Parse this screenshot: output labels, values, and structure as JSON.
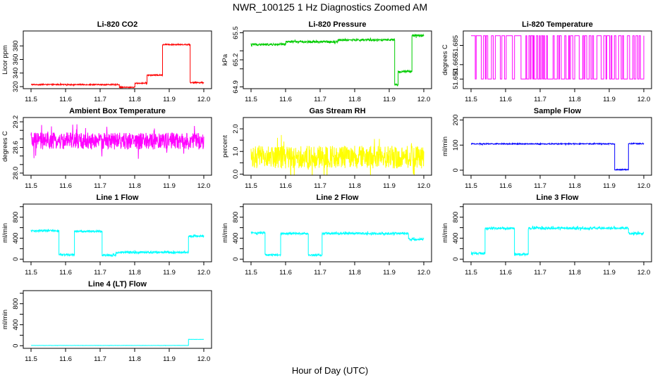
{
  "figure": {
    "title": "NWR_100125  1 Hz Diagnostics Zoomed AM",
    "xlabel": "Hour of Day (UTC)"
  },
  "chart_data": [
    {
      "type": "line",
      "title": "Li-820 CO2",
      "ylabel": "Licor ppm",
      "color": "#ff0000",
      "xlim": [
        11.5,
        12.0
      ],
      "ylim": [
        317,
        402
      ],
      "xticks": [
        "11.5",
        "11.6",
        "11.7",
        "11.8",
        "11.9",
        "12.0"
      ],
      "yticks": [
        "320",
        "340",
        "360",
        "380"
      ],
      "segments": [
        {
          "x0": 11.5,
          "x1": 11.755,
          "y": 323
        },
        {
          "x0": 11.755,
          "x1": 11.8,
          "y": 319
        },
        {
          "x0": 11.8,
          "x1": 11.835,
          "y": 325
        },
        {
          "x0": 11.835,
          "x1": 11.88,
          "y": 337
        },
        {
          "x0": 11.88,
          "x1": 11.96,
          "y": 382
        },
        {
          "x0": 11.96,
          "x1": 12.0,
          "y": 326
        }
      ],
      "noise": 0.8
    },
    {
      "type": "line",
      "title": "Li-820 Pressure",
      "ylabel": "kPa",
      "color": "#00cc00",
      "xlim": [
        11.5,
        12.0
      ],
      "ylim": [
        64.88,
        65.52
      ],
      "xticks": [
        "11.5",
        "11.6",
        "11.7",
        "11.8",
        "11.9",
        "12.0"
      ],
      "yticks": [
        "64.9",
        "65.2",
        "65.5"
      ],
      "yticks_minor": [
        "65.1",
        "65.3"
      ],
      "segments": [
        {
          "x0": 11.5,
          "x1": 11.6,
          "y": 65.37
        },
        {
          "x0": 11.6,
          "x1": 11.75,
          "y": 65.4
        },
        {
          "x0": 11.75,
          "x1": 11.915,
          "y": 65.42
        },
        {
          "x0": 11.915,
          "x1": 11.925,
          "y": 64.92
        },
        {
          "x0": 11.925,
          "x1": 11.965,
          "y": 65.07
        },
        {
          "x0": 11.965,
          "x1": 12.0,
          "y": 65.47
        }
      ],
      "noise": 0.012
    },
    {
      "type": "line",
      "title": "Li-820 Temperature",
      "ylabel": "degrees C",
      "color": "#ff00ff",
      "xlim": [
        11.5,
        12.0
      ],
      "ylim": [
        51.64,
        51.7
      ],
      "xticks": [
        "11.5",
        "11.6",
        "11.7",
        "11.8",
        "11.9",
        "12.0"
      ],
      "yticks": [
        "51.650",
        "51.665",
        "51.685"
      ],
      "levels": [
        51.65,
        51.695
      ],
      "pattern": "binary"
    },
    {
      "type": "line",
      "title": "Ambient Box Temperature",
      "ylabel": "degrees C",
      "color": "#ff00ff",
      "xlim": [
        11.5,
        12.0
      ],
      "ylim": [
        27.95,
        29.3
      ],
      "xticks": [
        "11.5",
        "11.6",
        "11.7",
        "11.8",
        "11.9",
        "12.0"
      ],
      "yticks": [
        "28.0",
        "28.6",
        "29.2"
      ],
      "yticks_minor": [
        "28.2",
        "28.4",
        "28.8",
        "29.0"
      ],
      "segments": [
        {
          "x0": 11.5,
          "x1": 12.0,
          "y": 28.75
        }
      ],
      "noise": 0.2
    },
    {
      "type": "line",
      "title": "Gas Stream RH",
      "ylabel": "percent",
      "color": "#ffff00",
      "xlim": [
        11.5,
        12.0
      ],
      "ylim": [
        -0.05,
        2.5
      ],
      "xticks": [
        "11.5",
        "11.6",
        "11.7",
        "11.8",
        "11.9",
        "12.0"
      ],
      "yticks": [
        "0.0",
        "1.0",
        "2.0"
      ],
      "yticks_minor": [
        "0.5",
        "1.5"
      ],
      "segments": [
        {
          "x0": 11.5,
          "x1": 12.0,
          "y": 0.75
        }
      ],
      "noise": 0.5
    },
    {
      "type": "line",
      "title": "Sample Flow",
      "ylabel": "ml/min",
      "color": "#0000ff",
      "xlim": [
        11.5,
        12.0
      ],
      "ylim": [
        -20,
        210
      ],
      "xticks": [
        "11.5",
        "11.6",
        "11.7",
        "11.8",
        "11.9",
        "12.0"
      ],
      "yticks": [
        "0",
        "100",
        "200"
      ],
      "segments": [
        {
          "x0": 11.5,
          "x1": 11.915,
          "y": 105
        },
        {
          "x0": 11.915,
          "x1": 11.955,
          "y": 2
        },
        {
          "x0": 11.955,
          "x1": 12.0,
          "y": 106
        }
      ],
      "noise": 2
    },
    {
      "type": "line",
      "title": "Line 1 Flow",
      "ylabel": "ml/min",
      "color": "#00ffff",
      "xlim": [
        11.5,
        12.0
      ],
      "ylim": [
        -50,
        1050
      ],
      "xticks": [
        "11.5",
        "11.6",
        "11.7",
        "11.8",
        "11.9",
        "12.0"
      ],
      "yticks": [
        "0",
        "400",
        "800"
      ],
      "yticks_minor": [
        "200",
        "600",
        "1000"
      ],
      "segments": [
        {
          "x0": 11.5,
          "x1": 11.58,
          "y": 540
        },
        {
          "x0": 11.58,
          "x1": 11.625,
          "y": 85
        },
        {
          "x0": 11.625,
          "x1": 11.705,
          "y": 530
        },
        {
          "x0": 11.705,
          "x1": 11.745,
          "y": 75
        },
        {
          "x0": 11.745,
          "x1": 11.955,
          "y": 130
        },
        {
          "x0": 11.955,
          "x1": 12.0,
          "y": 440
        }
      ],
      "noise": 20
    },
    {
      "type": "line",
      "title": "Line 2 Flow",
      "ylabel": "ml/min",
      "color": "#00ffff",
      "xlim": [
        11.5,
        12.0
      ],
      "ylim": [
        -50,
        1050
      ],
      "xticks": [
        "11.5",
        "11.6",
        "11.7",
        "11.8",
        "11.9",
        "12.0"
      ],
      "yticks": [
        "0",
        "400",
        "800"
      ],
      "yticks_minor": [
        "200",
        "600",
        "1000"
      ],
      "segments": [
        {
          "x0": 11.5,
          "x1": 11.54,
          "y": 500
        },
        {
          "x0": 11.54,
          "x1": 11.585,
          "y": 80
        },
        {
          "x0": 11.585,
          "x1": 11.665,
          "y": 490
        },
        {
          "x0": 11.665,
          "x1": 11.705,
          "y": 80
        },
        {
          "x0": 11.705,
          "x1": 11.955,
          "y": 490
        },
        {
          "x0": 11.955,
          "x1": 12.0,
          "y": 380
        }
      ],
      "noise": 20
    },
    {
      "type": "line",
      "title": "Line 3 Flow",
      "ylabel": "ml/min",
      "color": "#00ffff",
      "xlim": [
        11.5,
        12.0
      ],
      "ylim": [
        -50,
        1050
      ],
      "xticks": [
        "11.5",
        "11.6",
        "11.7",
        "11.8",
        "11.9",
        "12.0"
      ],
      "yticks": [
        "0",
        "400",
        "800"
      ],
      "yticks_minor": [
        "200",
        "600",
        "1000"
      ],
      "segments": [
        {
          "x0": 11.5,
          "x1": 11.54,
          "y": 110
        },
        {
          "x0": 11.54,
          "x1": 11.625,
          "y": 590
        },
        {
          "x0": 11.625,
          "x1": 11.665,
          "y": 90
        },
        {
          "x0": 11.665,
          "x1": 11.955,
          "y": 590
        },
        {
          "x0": 11.955,
          "x1": 12.0,
          "y": 490
        }
      ],
      "noise": 22
    },
    {
      "type": "line",
      "title": "Line 4 (LT) Flow",
      "ylabel": "ml/min",
      "color": "#00ffff",
      "xlim": [
        11.5,
        12.0
      ],
      "ylim": [
        -50,
        1050
      ],
      "xticks": [
        "11.5",
        "11.6",
        "11.7",
        "11.8",
        "11.9",
        "12.0"
      ],
      "yticks": [
        "0",
        "400",
        "800"
      ],
      "yticks_minor": [
        "200",
        "600",
        "1000"
      ],
      "segments": [
        {
          "x0": 11.5,
          "x1": 11.955,
          "y": 5
        },
        {
          "x0": 11.955,
          "x1": 12.0,
          "y": 120
        }
      ],
      "noise": 2
    }
  ]
}
